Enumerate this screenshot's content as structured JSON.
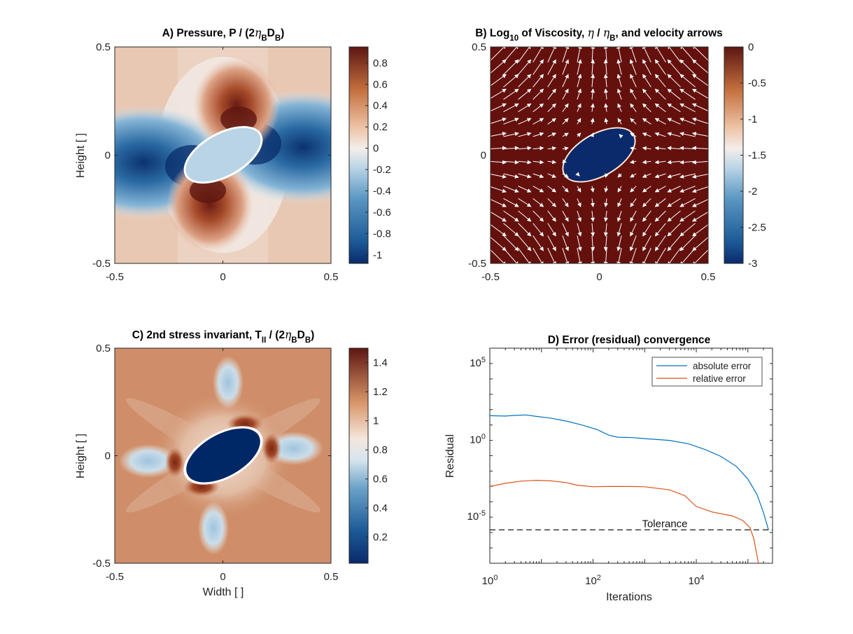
{
  "chart_data": [
    {
      "id": "A",
      "type": "heatmap",
      "title": "A) Pressure, P / (2ηBDB)",
      "title_parts": [
        "A) Pressure, P / (2",
        "η",
        "B",
        "D",
        "B",
        ")"
      ],
      "xlabel": "",
      "ylabel": "Height [ ]",
      "xlim": [
        -0.5,
        0.5
      ],
      "ylim": [
        -0.5,
        0.5
      ],
      "x_ticks": [
        "-0.5",
        "0",
        "0.5"
      ],
      "y_ticks": [
        "-0.5",
        "0",
        "0.5"
      ],
      "colorbar": {
        "range": [
          -1.08,
          0.95
        ],
        "ticks": [
          "-1",
          "-0.8",
          "-0.6",
          "-0.4",
          "-0.2",
          "0",
          "0.2",
          "0.4",
          "0.6",
          "0.8"
        ],
        "tick_values": [
          -1,
          -0.8,
          -0.6,
          -0.4,
          -0.2,
          0,
          0.2,
          0.4,
          0.6,
          0.8
        ]
      },
      "inclusion_value": -0.2,
      "colormap": "diverging blue-white-brown"
    },
    {
      "id": "B",
      "type": "heatmap",
      "title": "B) Log10 of Viscosity, η / ηB, and velocity arrows",
      "title_parts": [
        "B) Log",
        "10",
        " of Viscosity, ",
        "η",
        " / ",
        "η",
        "B",
        ", and velocity arrows"
      ],
      "xlabel": "",
      "ylabel": "",
      "xlim": [
        -0.5,
        0.5
      ],
      "ylim": [
        -0.5,
        0.5
      ],
      "x_ticks": [
        "-0.5",
        "0",
        "0.5"
      ],
      "y_ticks": [
        "-0.5",
        "0",
        "0.5"
      ],
      "colorbar": {
        "range": [
          -3,
          0
        ],
        "ticks": [
          "-3",
          "-2.5",
          "-2",
          "-1.5",
          "-1",
          "-0.5",
          "0"
        ],
        "tick_values": [
          -3,
          -2.5,
          -2,
          -1.5,
          -1,
          -0.5,
          0
        ]
      },
      "matrix_value": 0,
      "inclusion_value": -3,
      "overlay": "velocity arrows (pure shear)"
    },
    {
      "id": "C",
      "type": "heatmap",
      "title": "C) 2nd stress invariant, TII / (2ηBDB)",
      "title_parts": [
        "C) 2nd stress invariant, T",
        "II",
        " / (2",
        "η",
        "B",
        "D",
        "B",
        ")"
      ],
      "xlabel": "Width [ ]",
      "ylabel": "Height [ ]",
      "xlim": [
        -0.5,
        0.5
      ],
      "ylim": [
        -0.5,
        0.5
      ],
      "x_ticks": [
        "-0.5",
        "0",
        "0.5"
      ],
      "y_ticks": [
        "-0.5",
        "0",
        "0.5"
      ],
      "colorbar": {
        "range": [
          0.02,
          1.5
        ],
        "ticks": [
          "0.2",
          "0.4",
          "0.6",
          "0.8",
          "1",
          "1.2",
          "1.4"
        ],
        "tick_values": [
          0.2,
          0.4,
          0.6,
          0.8,
          1,
          1.2,
          1.4
        ]
      },
      "background_value": 1.05,
      "inclusion_value": 0.02
    },
    {
      "id": "D",
      "type": "line",
      "title": "D) Error (residual) convergence",
      "xlabel": "Iterations",
      "ylabel": "Residual",
      "x_scale": "log",
      "y_scale": "log",
      "xlim": [
        1,
        300000
      ],
      "ylim": [
        1e-08,
        1000000.0
      ],
      "x_ticks": [
        {
          "value": 1,
          "base": "10",
          "exp": "0"
        },
        {
          "value": 100,
          "base": "10",
          "exp": "2"
        },
        {
          "value": 10000,
          "base": "10",
          "exp": "4"
        }
      ],
      "y_ticks": [
        {
          "value": 1e-05,
          "base": "10",
          "exp": "-5"
        },
        {
          "value": 1,
          "base": "10",
          "exp": "0"
        },
        {
          "value": 100000,
          "base": "10",
          "exp": "5"
        }
      ],
      "legend_position": "top-right",
      "series": [
        {
          "name": "absolute error",
          "color": "#0072BD",
          "points": [
            [
              1,
              40
            ],
            [
              2,
              38
            ],
            [
              3,
              42
            ],
            [
              5,
              45
            ],
            [
              8,
              36
            ],
            [
              15,
              28
            ],
            [
              30,
              18
            ],
            [
              60,
              10
            ],
            [
              120,
              5
            ],
            [
              200,
              2.2
            ],
            [
              300,
              1.6
            ],
            [
              600,
              1.5
            ],
            [
              1000,
              1.3
            ],
            [
              3000,
              1.0
            ],
            [
              7000,
              0.6
            ],
            [
              15000,
              0.25
            ],
            [
              30000,
              0.09
            ],
            [
              60000,
              0.02
            ],
            [
              100000,
              0.003
            ],
            [
              150000,
              0.0003
            ],
            [
              200000,
              2e-05
            ],
            [
              250000,
              1.5e-06
            ]
          ]
        },
        {
          "name": "relative error",
          "color": "#D95319",
          "points": [
            [
              1,
              0.001
            ],
            [
              2,
              0.0016
            ],
            [
              4,
              0.0022
            ],
            [
              8,
              0.0025
            ],
            [
              15,
              0.0023
            ],
            [
              30,
              0.0018
            ],
            [
              50,
              0.0012
            ],
            [
              100,
              0.00095
            ],
            [
              200,
              0.001
            ],
            [
              500,
              0.001
            ],
            [
              1000,
              0.00095
            ],
            [
              3000,
              0.0006
            ],
            [
              6000,
              0.00025
            ],
            [
              10000,
              5e-05
            ],
            [
              20000,
              2.2e-05
            ],
            [
              50000,
              1.2e-05
            ],
            [
              80000,
              6e-06
            ],
            [
              110000,
              2e-06
            ],
            [
              130000,
              4e-07
            ],
            [
              160000,
              1e-08
            ]
          ]
        }
      ],
      "annotations": [
        {
          "text": "Tolerance",
          "y": 1.5e-06,
          "style": "dashed",
          "color": "#000000"
        }
      ]
    }
  ]
}
